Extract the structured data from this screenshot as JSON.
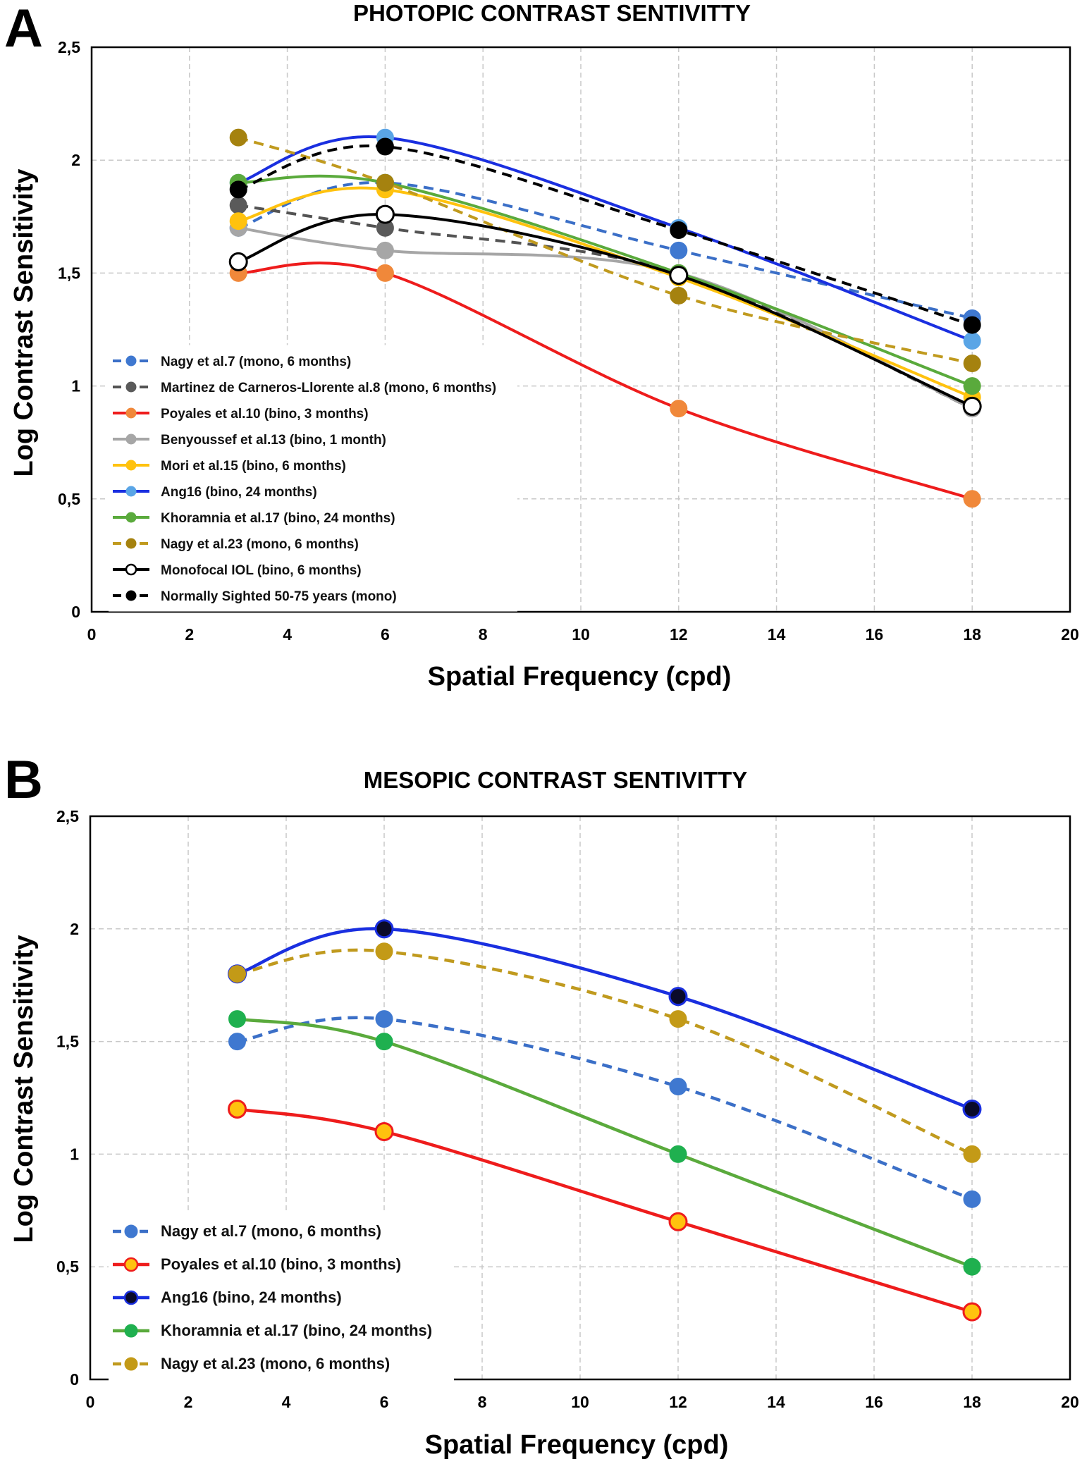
{
  "chart_data": [
    {
      "panel": "A",
      "type": "line",
      "title": "PHOTOPIC CONTRAST SENTIVITTY",
      "xlabel": "Spatial Frequency (cpd)",
      "ylabel": "Log Contrast Sensitivity",
      "xlim": [
        0,
        20
      ],
      "ylim": [
        0,
        2.5
      ],
      "x_ticks": [
        "0",
        "2",
        "4",
        "6",
        "8",
        "10",
        "12",
        "14",
        "16",
        "18",
        "20"
      ],
      "y_ticks": [
        "0",
        "0,5",
        "1",
        "1,5",
        "2",
        "2,5"
      ],
      "grid": true,
      "legend_position": "bottom-left",
      "x": [
        3,
        6,
        12,
        18
      ],
      "series": [
        {
          "name": "Nagy et al.7 (mono, 6 months)",
          "values": [
            1.7,
            1.9,
            1.6,
            1.3
          ],
          "color": "#3b6fc7",
          "marker": "#3f78d0",
          "markerEdge": "#3f78d0",
          "dash": true
        },
        {
          "name": "Martinez de Carneros-Llorente al.8 (mono, 6 months)",
          "values": [
            1.8,
            1.7,
            1.5,
            0.9
          ],
          "color": "#545454",
          "marker": "#5a5a5a",
          "markerEdge": "#5a5a5a",
          "dash": true
        },
        {
          "name": "Poyales et al.10 (bino, 3 months)",
          "values": [
            1.5,
            1.5,
            0.9,
            0.5
          ],
          "color": "#ee1c1c",
          "marker": "#f0883a",
          "markerEdge": "#f0883a",
          "dash": false
        },
        {
          "name": "Benyoussef et al.13 (bino, 1 month)",
          "values": [
            1.7,
            1.6,
            1.5,
            0.9
          ],
          "color": "#a6a6a6",
          "marker": "#a6a6a6",
          "markerEdge": "#a6a6a6",
          "dash": false
        },
        {
          "name": "Mori et al.15 (bino, 6 months)",
          "values": [
            1.73,
            1.87,
            1.48,
            0.95
          ],
          "color": "#ffc20e",
          "marker": "#ffc20e",
          "markerEdge": "#ffc20e",
          "dash": false
        },
        {
          "name": "Ang16 (bino, 24 months)",
          "values": [
            1.9,
            2.1,
            1.7,
            1.2
          ],
          "color": "#1a2fe0",
          "marker": "#5aa5e6",
          "markerEdge": "#5aa5e6",
          "dash": false
        },
        {
          "name": "Khoramnia et al.17 (bino, 24 months)",
          "values": [
            1.9,
            1.9,
            1.5,
            1.0
          ],
          "color": "#5aaa3c",
          "marker": "#5aaa3c",
          "markerEdge": "#5aaa3c",
          "dash": false
        },
        {
          "name": "Nagy et al.23 (mono, 6 months)",
          "values": [
            2.1,
            1.9,
            1.4,
            1.1
          ],
          "color": "#c09a1e",
          "marker": "#a5820f",
          "markerEdge": "#a5820f",
          "dash": true
        },
        {
          "name": "Monofocal IOL (bino, 6 months)",
          "values": [
            1.55,
            1.76,
            1.49,
            0.91
          ],
          "color": "#000000",
          "marker": "#ffffff",
          "markerEdge": "#000000",
          "dash": false
        },
        {
          "name": "Normally Sighted 50-75 years (mono)",
          "values": [
            1.87,
            2.06,
            1.69,
            1.27
          ],
          "color": "#000000",
          "marker": "#000000",
          "markerEdge": "#000000",
          "dash": true
        }
      ]
    },
    {
      "panel": "B",
      "type": "line",
      "title": "MESOPIC CONTRAST SENTIVITTY",
      "xlabel": "Spatial Frequency (cpd)",
      "ylabel": "Log Contrast Sensitivity",
      "xlim": [
        0,
        20
      ],
      "ylim": [
        0,
        2.5
      ],
      "x_ticks": [
        "0",
        "2",
        "4",
        "6",
        "8",
        "10",
        "12",
        "14",
        "16",
        "18",
        "20"
      ],
      "y_ticks": [
        "0",
        "0,5",
        "1",
        "1,5",
        "2",
        "2,5"
      ],
      "grid": true,
      "legend_position": "bottom-left",
      "x": [
        3,
        6,
        12,
        18
      ],
      "series": [
        {
          "name": "Nagy et al.7 (mono, 6 months)",
          "values": [
            1.5,
            1.6,
            1.3,
            0.8
          ],
          "color": "#3b6fc7",
          "marker": "#3f78d0",
          "markerEdge": "#3f78d0",
          "dash": true
        },
        {
          "name": "Poyales et al.10 (bino, 3 months)",
          "values": [
            1.2,
            1.1,
            0.7,
            0.3
          ],
          "color": "#ee1c1c",
          "marker": "#ffc20e",
          "markerEdge": "#ee1c1c",
          "dash": false
        },
        {
          "name": "Ang16 (bino, 24 months)",
          "values": [
            1.8,
            2.0,
            1.7,
            1.2
          ],
          "color": "#1a2fe0",
          "marker": "#0a0a2a",
          "markerEdge": "#1a2fe0",
          "dash": false
        },
        {
          "name": "Khoramnia et al.17 (bino, 24 months)",
          "values": [
            1.6,
            1.5,
            1.0,
            0.5
          ],
          "color": "#5aaa3c",
          "marker": "#1fb04f",
          "markerEdge": "#1fb04f",
          "dash": false
        },
        {
          "name": "Nagy et al.23 (mono, 6 months)",
          "values": [
            1.8,
            1.9,
            1.6,
            1.0
          ],
          "color": "#c09a1e",
          "marker": "#c39a17",
          "markerEdge": "#c39a17",
          "dash": true
        }
      ]
    }
  ]
}
